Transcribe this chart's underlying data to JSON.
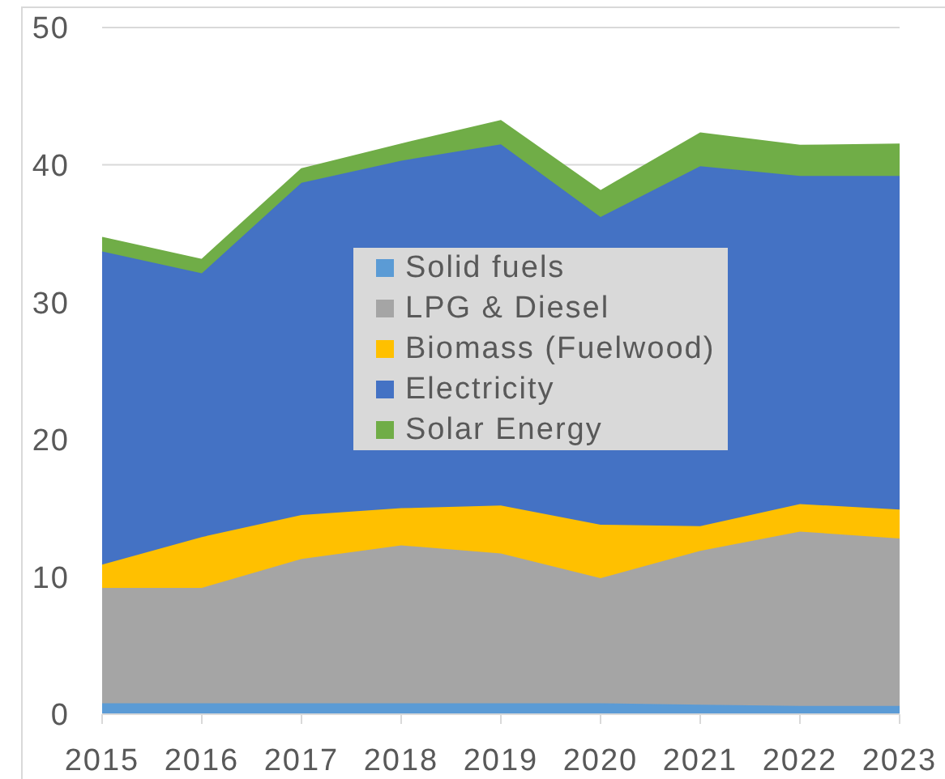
{
  "chart_data": {
    "type": "area",
    "stacked": true,
    "categories": [
      "2015",
      "2016",
      "2017",
      "2018",
      "2019",
      "2020",
      "2021",
      "2022",
      "2023"
    ],
    "series": [
      {
        "name": "Solid fuels",
        "color": "#5b9bd5",
        "values": [
          0.8,
          0.8,
          0.8,
          0.8,
          0.8,
          0.8,
          0.7,
          0.6,
          0.6
        ]
      },
      {
        "name": "LPG & Diesel",
        "color": "#a5a5a5",
        "values": [
          8.4,
          8.4,
          10.5,
          11.5,
          10.9,
          9.1,
          11.2,
          12.7,
          12.2
        ]
      },
      {
        "name": "Biomass (Fuelwood)",
        "color": "#ffc000",
        "values": [
          1.7,
          3.7,
          3.2,
          2.7,
          3.5,
          3.9,
          1.8,
          2.0,
          2.1
        ]
      },
      {
        "name": "Electricity",
        "color": "#4472c4",
        "values": [
          22.8,
          19.2,
          24.2,
          25.3,
          26.3,
          22.4,
          26.2,
          23.9,
          24.3
        ]
      },
      {
        "name": "Solar Energy",
        "color": "#70ad47",
        "values": [
          1.0,
          1.0,
          1.0,
          1.2,
          1.7,
          1.9,
          2.4,
          2.2,
          2.3
        ]
      }
    ],
    "ylim": [
      0,
      50
    ],
    "yticks": [
      0,
      10,
      20,
      30,
      40,
      50
    ],
    "grid": "y",
    "legend": "center"
  }
}
